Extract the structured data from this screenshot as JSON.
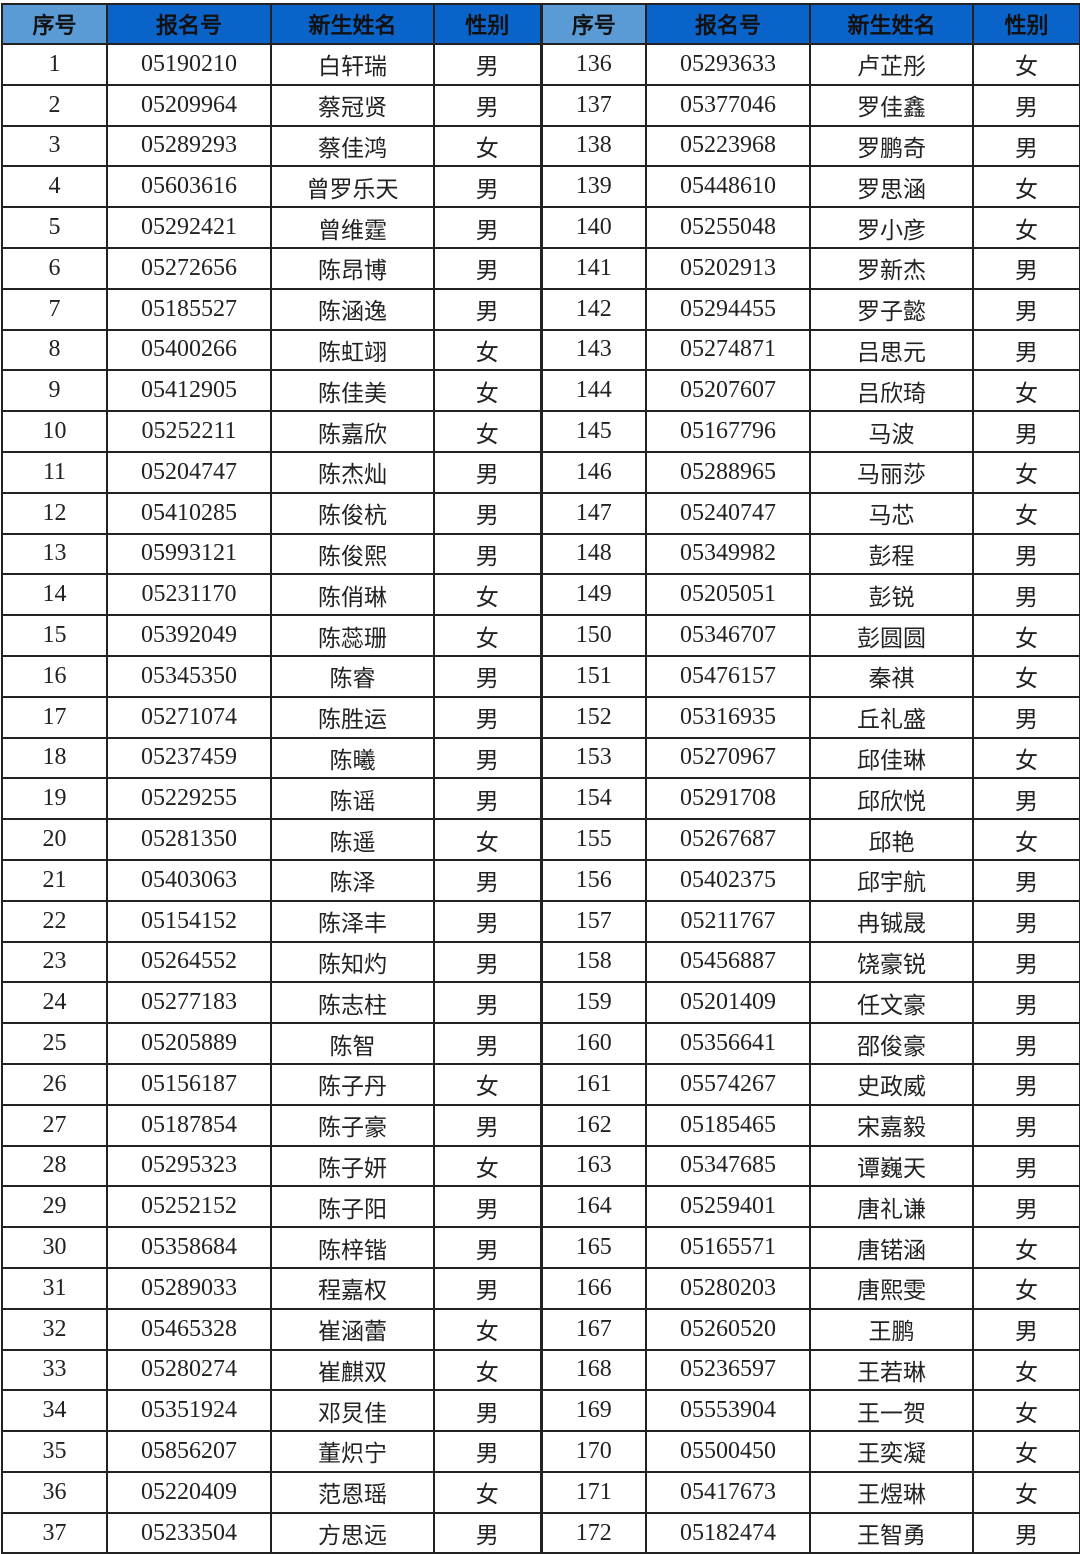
{
  "headers": [
    "序号",
    "报名号",
    "新生姓名",
    "性别",
    "序号",
    "报名号",
    "新生姓名",
    "性别"
  ],
  "colors": {
    "header_light": "#5b9bd5",
    "header_dark": "#0a63c9"
  },
  "left": [
    [
      "1",
      "05190210",
      "白轩瑞",
      "男"
    ],
    [
      "2",
      "05209964",
      "蔡冠贤",
      "男"
    ],
    [
      "3",
      "05289293",
      "蔡佳鸿",
      "女"
    ],
    [
      "4",
      "05603616",
      "曾罗乐天",
      "男"
    ],
    [
      "5",
      "05292421",
      "曾维霆",
      "男"
    ],
    [
      "6",
      "05272656",
      "陈昂博",
      "男"
    ],
    [
      "7",
      "05185527",
      "陈涵逸",
      "男"
    ],
    [
      "8",
      "05400266",
      "陈虹翊",
      "女"
    ],
    [
      "9",
      "05412905",
      "陈佳美",
      "女"
    ],
    [
      "10",
      "05252211",
      "陈嘉欣",
      "女"
    ],
    [
      "11",
      "05204747",
      "陈杰灿",
      "男"
    ],
    [
      "12",
      "05410285",
      "陈俊杭",
      "男"
    ],
    [
      "13",
      "05993121",
      "陈俊熙",
      "男"
    ],
    [
      "14",
      "05231170",
      "陈俏琳",
      "女"
    ],
    [
      "15",
      "05392049",
      "陈蕊珊",
      "女"
    ],
    [
      "16",
      "05345350",
      "陈睿",
      "男"
    ],
    [
      "17",
      "05271074",
      "陈胜运",
      "男"
    ],
    [
      "18",
      "05237459",
      "陈曦",
      "男"
    ],
    [
      "19",
      "05229255",
      "陈谣",
      "男"
    ],
    [
      "20",
      "05281350",
      "陈遥",
      "女"
    ],
    [
      "21",
      "05403063",
      "陈泽",
      "男"
    ],
    [
      "22",
      "05154152",
      "陈泽丰",
      "男"
    ],
    [
      "23",
      "05264552",
      "陈知灼",
      "男"
    ],
    [
      "24",
      "05277183",
      "陈志柱",
      "男"
    ],
    [
      "25",
      "05205889",
      "陈智",
      "男"
    ],
    [
      "26",
      "05156187",
      "陈子丹",
      "女"
    ],
    [
      "27",
      "05187854",
      "陈子豪",
      "男"
    ],
    [
      "28",
      "05295323",
      "陈子妍",
      "女"
    ],
    [
      "29",
      "05252152",
      "陈子阳",
      "男"
    ],
    [
      "30",
      "05358684",
      "陈梓锴",
      "男"
    ],
    [
      "31",
      "05289033",
      "程嘉权",
      "男"
    ],
    [
      "32",
      "05465328",
      "崔涵蕾",
      "女"
    ],
    [
      "33",
      "05280274",
      "崔麒双",
      "女"
    ],
    [
      "34",
      "05351924",
      "邓炅佳",
      "男"
    ],
    [
      "35",
      "05856207",
      "董炽宁",
      "男"
    ],
    [
      "36",
      "05220409",
      "范恩瑶",
      "女"
    ],
    [
      "37",
      "05233504",
      "方思远",
      "男"
    ]
  ],
  "right": [
    [
      "136",
      "05293633",
      "卢芷彤",
      "女"
    ],
    [
      "137",
      "05377046",
      "罗佳鑫",
      "男"
    ],
    [
      "138",
      "05223968",
      "罗鹏奇",
      "男"
    ],
    [
      "139",
      "05448610",
      "罗思涵",
      "女"
    ],
    [
      "140",
      "05255048",
      "罗小彦",
      "女"
    ],
    [
      "141",
      "05202913",
      "罗新杰",
      "男"
    ],
    [
      "142",
      "05294455",
      "罗子懿",
      "男"
    ],
    [
      "143",
      "05274871",
      "吕思元",
      "男"
    ],
    [
      "144",
      "05207607",
      "吕欣琦",
      "女"
    ],
    [
      "145",
      "05167796",
      "马波",
      "男"
    ],
    [
      "146",
      "05288965",
      "马丽莎",
      "女"
    ],
    [
      "147",
      "05240747",
      "马芯",
      "女"
    ],
    [
      "148",
      "05349982",
      "彭程",
      "男"
    ],
    [
      "149",
      "05205051",
      "彭锐",
      "男"
    ],
    [
      "150",
      "05346707",
      "彭圆圆",
      "女"
    ],
    [
      "151",
      "05476157",
      "秦祺",
      "女"
    ],
    [
      "152",
      "05316935",
      "丘礼盛",
      "男"
    ],
    [
      "153",
      "05270967",
      "邱佳琳",
      "女"
    ],
    [
      "154",
      "05291708",
      "邱欣悦",
      "男"
    ],
    [
      "155",
      "05267687",
      "邱艳",
      "女"
    ],
    [
      "156",
      "05402375",
      "邱宇航",
      "男"
    ],
    [
      "157",
      "05211767",
      "冉铖晟",
      "男"
    ],
    [
      "158",
      "05456887",
      "饶豪锐",
      "男"
    ],
    [
      "159",
      "05201409",
      "任文豪",
      "男"
    ],
    [
      "160",
      "05356641",
      "邵俊豪",
      "男"
    ],
    [
      "161",
      "05574267",
      "史政威",
      "男"
    ],
    [
      "162",
      "05185465",
      "宋嘉毅",
      "男"
    ],
    [
      "163",
      "05347685",
      "谭巍天",
      "男"
    ],
    [
      "164",
      "05259401",
      "唐礼谦",
      "男"
    ],
    [
      "165",
      "05165571",
      "唐锘涵",
      "女"
    ],
    [
      "166",
      "05280203",
      "唐熙雯",
      "女"
    ],
    [
      "167",
      "05260520",
      "王鹏",
      "男"
    ],
    [
      "168",
      "05236597",
      "王若琳",
      "女"
    ],
    [
      "169",
      "05553904",
      "王一贺",
      "女"
    ],
    [
      "170",
      "05500450",
      "王奕凝",
      "女"
    ],
    [
      "171",
      "05417673",
      "王煜琳",
      "女"
    ],
    [
      "172",
      "05182474",
      "王智勇",
      "男"
    ]
  ]
}
